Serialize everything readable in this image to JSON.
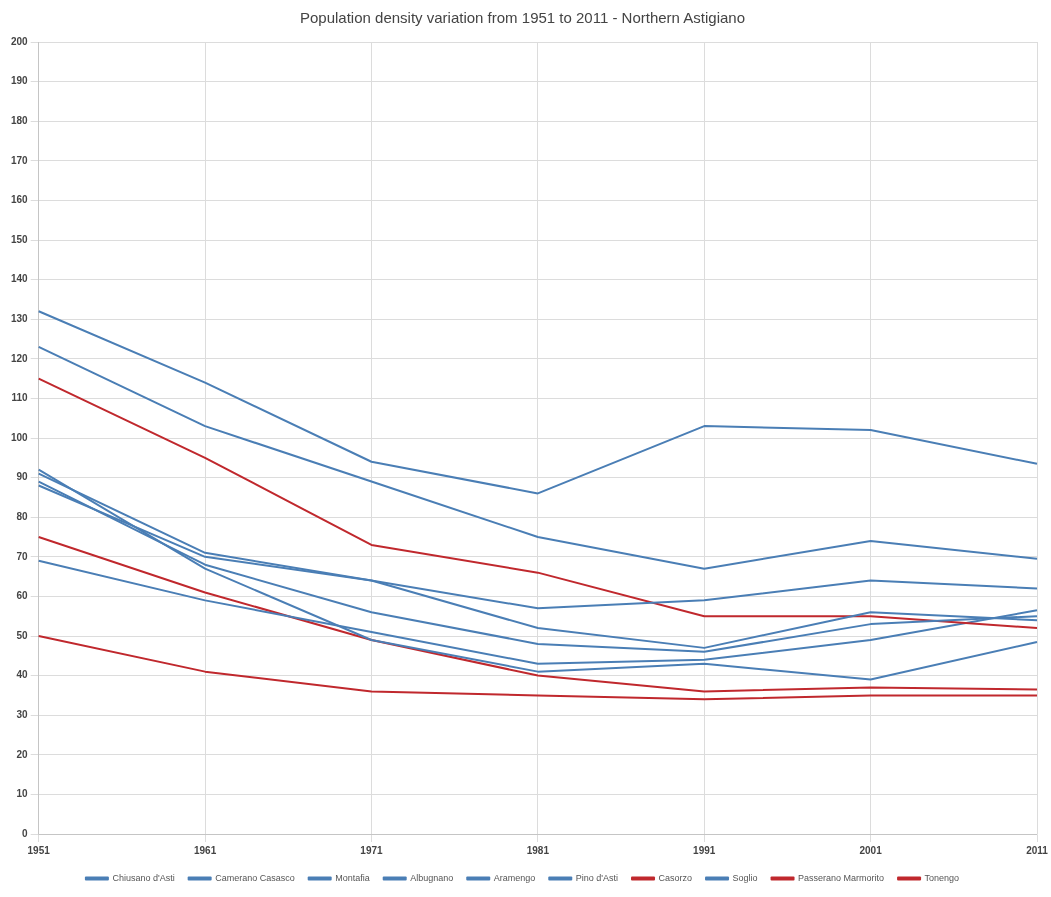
{
  "chart_data": {
    "type": "line",
    "title": "Population density variation from 1951 to 2011 - Northern Astigiano",
    "categories": [
      "1951",
      "1961",
      "1971",
      "1981",
      "1991",
      "2001",
      "2011"
    ],
    "series": [
      {
        "name": "Chiusano d'Asti",
        "color": "#4a7eb5",
        "values": [
          132,
          114,
          94,
          86,
          103,
          102,
          93.5
        ]
      },
      {
        "name": "Camerano Casasco",
        "color": "#4a7eb5",
        "values": [
          123,
          103,
          89,
          75,
          67,
          74,
          69.5
        ]
      },
      {
        "name": "Montafia",
        "color": "#4a7eb5",
        "values": [
          91,
          71,
          64,
          57,
          59,
          64,
          62
        ]
      },
      {
        "name": "Albugnano",
        "color": "#4a7eb5",
        "values": [
          88,
          70,
          64,
          52,
          47,
          56,
          54
        ]
      },
      {
        "name": "Aramengo",
        "color": "#4a7eb5",
        "values": [
          89,
          68,
          56,
          48,
          46,
          53,
          55
        ]
      },
      {
        "name": "Pino d'Asti",
        "color": "#4a7eb5",
        "values": [
          92,
          67,
          49,
          41,
          43,
          39,
          48.5
        ]
      },
      {
        "name": "Casorzo",
        "color": "#c0282d",
        "values": [
          115,
          95,
          73,
          66,
          55,
          55,
          52
        ]
      },
      {
        "name": "Soglio",
        "color": "#4a7eb5",
        "values": [
          69,
          59,
          51,
          43,
          44,
          49,
          56.5
        ]
      },
      {
        "name": "Passerano Marmorito",
        "color": "#c0282d",
        "values": [
          75,
          61,
          49,
          40,
          36,
          37,
          36.5
        ]
      },
      {
        "name": "Tonengo",
        "color": "#c0282d",
        "values": [
          50,
          41,
          36,
          35,
          34,
          35,
          35
        ]
      }
    ],
    "ylim": [
      0,
      200
    ],
    "yticks": [
      0,
      10,
      20,
      30,
      40,
      50,
      60,
      70,
      80,
      90,
      100,
      110,
      120,
      130,
      140,
      150,
      160,
      170,
      180,
      190,
      200
    ],
    "grid": true,
    "legend": "bottom",
    "marker": "none",
    "line_style": "solid"
  }
}
